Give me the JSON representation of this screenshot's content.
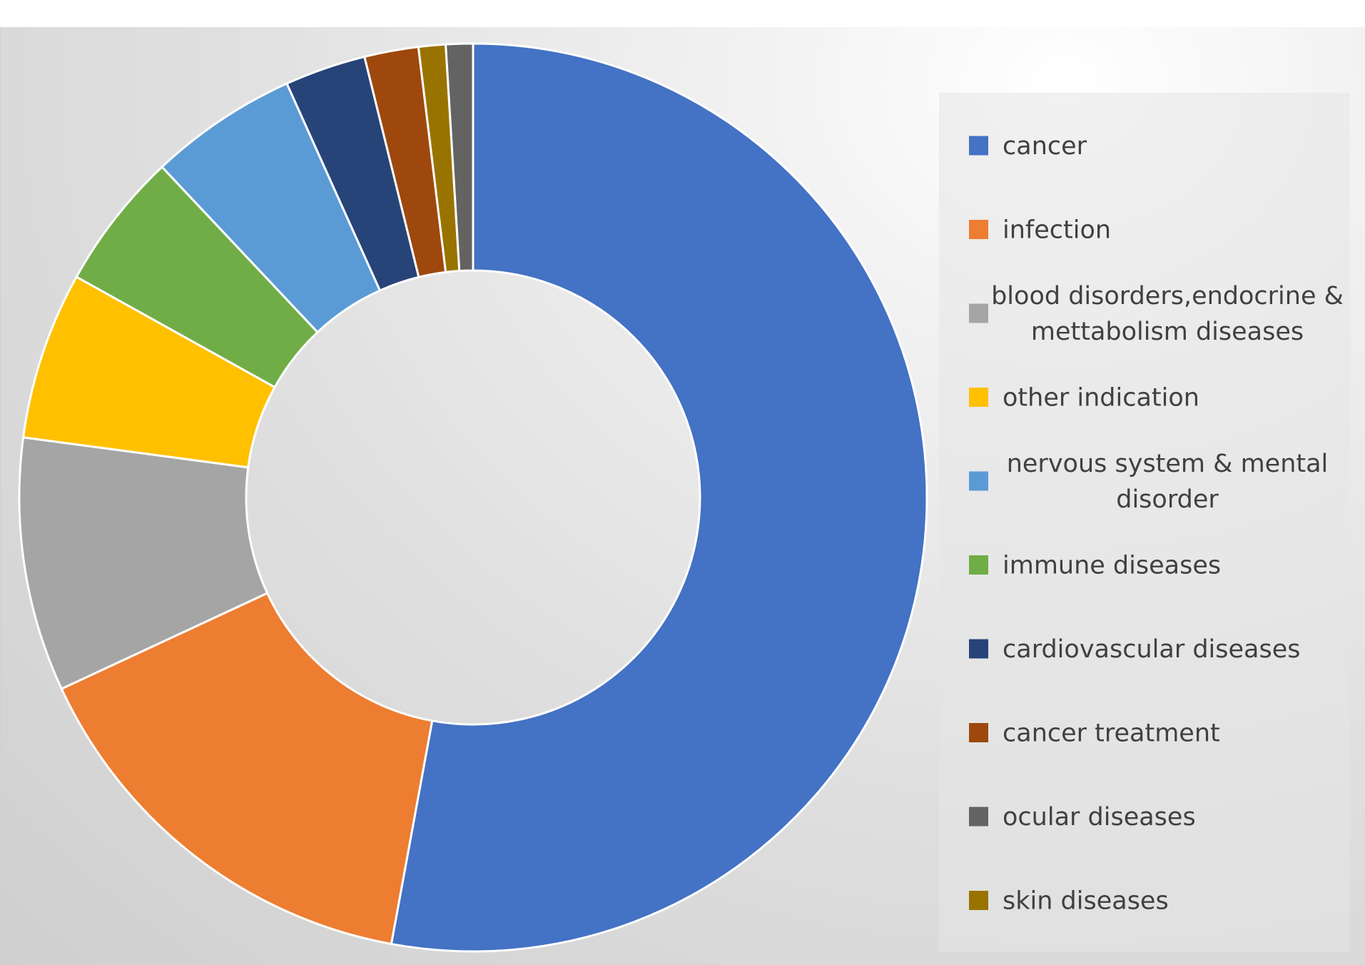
{
  "chart_data": {
    "type": "pie",
    "variant": "donut",
    "title": "",
    "legend_position": "right",
    "slices": [
      {
        "label": "cancer",
        "value": 55.0,
        "color": "#4472C4"
      },
      {
        "label": "infection",
        "value": 15.8,
        "color": "#ED7D31"
      },
      {
        "label": "blood disorders,endocrine & mettabolism diseases",
        "value": 9.4,
        "color": "#A5A5A5"
      },
      {
        "label": "other indication",
        "value": 6.2,
        "color": "#FFC000"
      },
      {
        "label": "nervous system & mental disorder",
        "value": 5.5,
        "color": "#5B9BD5"
      },
      {
        "label": "immune diseases",
        "value": 5.1,
        "color": "#70AD47"
      },
      {
        "label": "cardiovascular diseases",
        "value": 3.0,
        "color": "#264478"
      },
      {
        "label": "cancer treatment",
        "value": 2.0,
        "color": "#9E480E"
      },
      {
        "label": "ocular diseases",
        "value": 1.0,
        "color": "#636363"
      },
      {
        "label": "skin diseases",
        "value": 1.0,
        "color": "#997300"
      }
    ],
    "draw_order": [
      "cancer",
      "infection",
      "blood disorders,endocrine & mettabolism diseases",
      "other indication",
      "immune diseases",
      "nervous system & mental disorder",
      "cardiovascular diseases",
      "cancer treatment",
      "skin diseases",
      "ocular diseases"
    ],
    "legend": {
      "items": [
        {
          "lines": [
            "cancer"
          ],
          "color": "#4472C4"
        },
        {
          "lines": [
            "infection"
          ],
          "color": "#ED7D31"
        },
        {
          "lines": [
            "blood disorders,endocrine &",
            "mettabolism diseases"
          ],
          "color": "#A5A5A5"
        },
        {
          "lines": [
            "other indication"
          ],
          "color": "#FFC000"
        },
        {
          "lines": [
            "nervous system & mental",
            "disorder"
          ],
          "color": "#5B9BD5"
        },
        {
          "lines": [
            "immune diseases"
          ],
          "color": "#70AD47"
        },
        {
          "lines": [
            "cardiovascular diseases"
          ],
          "color": "#264478"
        },
        {
          "lines": [
            "cancer treatment"
          ],
          "color": "#9E480E"
        },
        {
          "lines": [
            "ocular diseases"
          ],
          "color": "#636363"
        },
        {
          "lines": [
            "skin diseases"
          ],
          "color": "#997300"
        }
      ]
    }
  }
}
